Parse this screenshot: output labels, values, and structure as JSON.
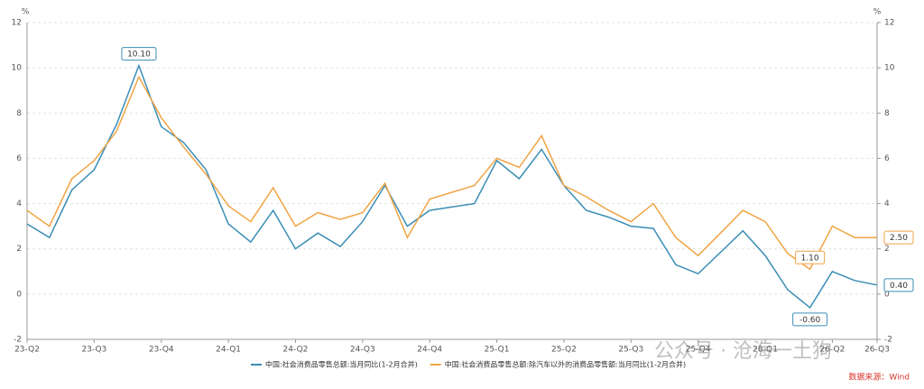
{
  "chart_data": {
    "type": "line",
    "y_unit": "%",
    "y2_unit": "%",
    "categories": [
      "23-Q2",
      null,
      null,
      "23-Q3",
      null,
      null,
      "23-Q4",
      null,
      null,
      "24-Q1",
      null,
      null,
      "24-Q2",
      null,
      null,
      "24-Q3",
      null,
      null,
      "24-Q4",
      null,
      null,
      "25-Q1",
      null,
      null,
      "25-Q2",
      null,
      null,
      "25-Q3",
      null,
      null,
      "25-Q4",
      null,
      null,
      "26-Q1",
      null,
      null,
      "26-Q2",
      null,
      "26-Q3"
    ],
    "series": [
      {
        "name": "中国:社会消费品零售总额:当月同比(1-2月合并)",
        "color": "#3a8db5",
        "axis": "y",
        "values": [
          3.1,
          2.5,
          4.6,
          5.5,
          7.5,
          10.1,
          7.4,
          6.7,
          5.5,
          3.1,
          2.3,
          3.7,
          2.0,
          2.7,
          2.1,
          3.2,
          4.8,
          3.0,
          3.7,
          3.85,
          4.0,
          5.9,
          5.1,
          6.4,
          4.8,
          3.7,
          3.4,
          3.0,
          2.9,
          1.3,
          0.9,
          1.85,
          2.8,
          1.7,
          0.2,
          -0.6,
          1.0,
          0.6,
          0.4
        ],
        "value_labels": [
          null,
          null,
          null,
          null,
          null,
          "10.10",
          null,
          null,
          null,
          null,
          null,
          null,
          null,
          null,
          null,
          null,
          null,
          null,
          null,
          null,
          null,
          null,
          null,
          null,
          null,
          null,
          null,
          null,
          null,
          null,
          null,
          null,
          null,
          null,
          null,
          "-0.60",
          null,
          null,
          "0.40"
        ]
      },
      {
        "name": "中国:社会消费品零售总额:除汽车以外的消费品零售额:当月同比(1-2月合并)",
        "color": "#f0a445",
        "axis": "y2",
        "values": [
          3.7,
          3.0,
          5.1,
          5.9,
          7.2,
          9.6,
          7.8,
          6.5,
          5.3,
          3.9,
          3.2,
          4.7,
          3.0,
          3.6,
          3.3,
          3.6,
          4.9,
          2.5,
          4.2,
          4.5,
          4.8,
          6.0,
          5.6,
          7.0,
          4.8,
          4.3,
          3.7,
          3.2,
          4.0,
          2.5,
          1.7,
          2.7,
          3.7,
          3.2,
          1.8,
          1.1,
          3.0,
          2.5,
          2.5
        ],
        "value_labels": [
          null,
          null,
          null,
          null,
          null,
          null,
          null,
          null,
          null,
          null,
          null,
          null,
          null,
          null,
          null,
          null,
          null,
          null,
          null,
          null,
          null,
          null,
          null,
          null,
          null,
          null,
          null,
          null,
          null,
          null,
          null,
          null,
          null,
          null,
          null,
          "1.10",
          null,
          null,
          "2.50"
        ]
      }
    ],
    "ylim": [
      -2,
      12
    ],
    "yticks": [
      -2,
      0,
      2,
      4,
      6,
      8,
      10,
      12
    ],
    "y2lim": [
      -2,
      12
    ],
    "y2ticks": [
      -2,
      0,
      2,
      4,
      6,
      8,
      10,
      12
    ],
    "grid": true,
    "source": "数据来源：Wind",
    "watermark": "公众号 · 沧海一土狗"
  }
}
